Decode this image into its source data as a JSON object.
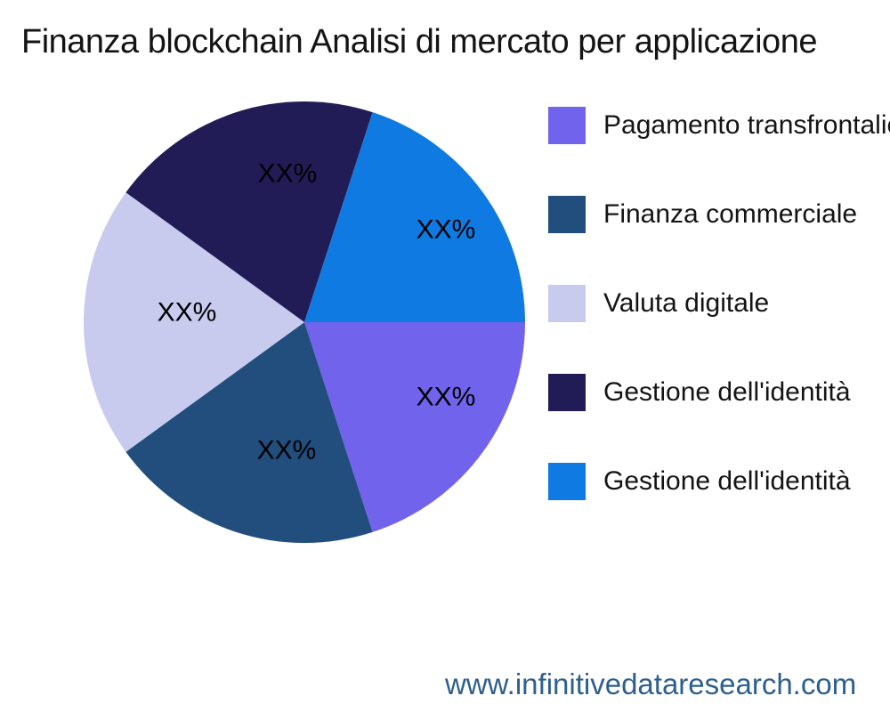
{
  "title": "Finanza blockchain Analisi di mercato per applicazione",
  "footer": {
    "url_text": "www.infinitivedataresearch.com",
    "color": "#2E5F8E"
  },
  "colors": {
    "background": "#FFFFFF",
    "title_text": "#141414",
    "legend_text": "#141414",
    "pie_label_text": "#000000"
  },
  "chart_data": {
    "type": "pie",
    "title": "Finanza blockchain Analisi di mercato per applicazione",
    "unit": "percent",
    "start_angle_deg": 0,
    "direction": "clockwise",
    "legend_position": "right",
    "grid": false,
    "slices": [
      {
        "label": "Pagamento transfrontaliero",
        "value": 20,
        "value_label": "XX%",
        "color": "#7163EC"
      },
      {
        "label": "Finanza commerciale",
        "value": 20,
        "value_label": "XX%",
        "color": "#214E7D"
      },
      {
        "label": "Valuta digitale",
        "value": 20,
        "value_label": "XX%",
        "color": "#C8CBEE"
      },
      {
        "label": "Gestione dell'identità",
        "value": 20,
        "value_label": "XX%",
        "color": "#211C55"
      },
      {
        "label": "Gestione dell'identità",
        "value": 20,
        "value_label": "XX%",
        "color": "#0E7AE2"
      }
    ]
  }
}
